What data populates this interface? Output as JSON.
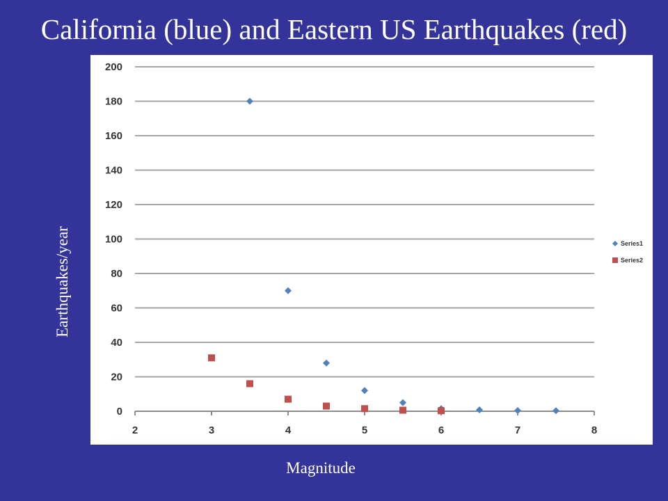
{
  "slide": {
    "title": "California (blue) and Eastern US Earthquakes (red)"
  },
  "chart_data": {
    "type": "scatter",
    "xlabel": "Magnitude",
    "ylabel": "Earthquakes/year",
    "xlim": [
      2,
      8
    ],
    "ylim": [
      0,
      200
    ],
    "xticks": [
      2,
      3,
      4,
      5,
      6,
      7,
      8
    ],
    "yticks": [
      0,
      20,
      40,
      60,
      80,
      100,
      120,
      140,
      160,
      180,
      200
    ],
    "grid": true,
    "legend_position": "right",
    "series": [
      {
        "name": "Series1",
        "color": "#4F81BD",
        "marker": "diamond",
        "x": [
          3.5,
          4,
          4.5,
          5,
          5.5,
          6,
          6.5,
          7,
          7.5
        ],
        "y": [
          180,
          70,
          28,
          12,
          5,
          1.5,
          0.8,
          0.4,
          0.3
        ]
      },
      {
        "name": "Series2",
        "color": "#C0504D",
        "marker": "square",
        "x": [
          3,
          3.5,
          4,
          4.5,
          5,
          5.5,
          6
        ],
        "y": [
          31,
          16,
          7,
          3,
          1.5,
          0.6,
          0.3
        ]
      }
    ]
  }
}
